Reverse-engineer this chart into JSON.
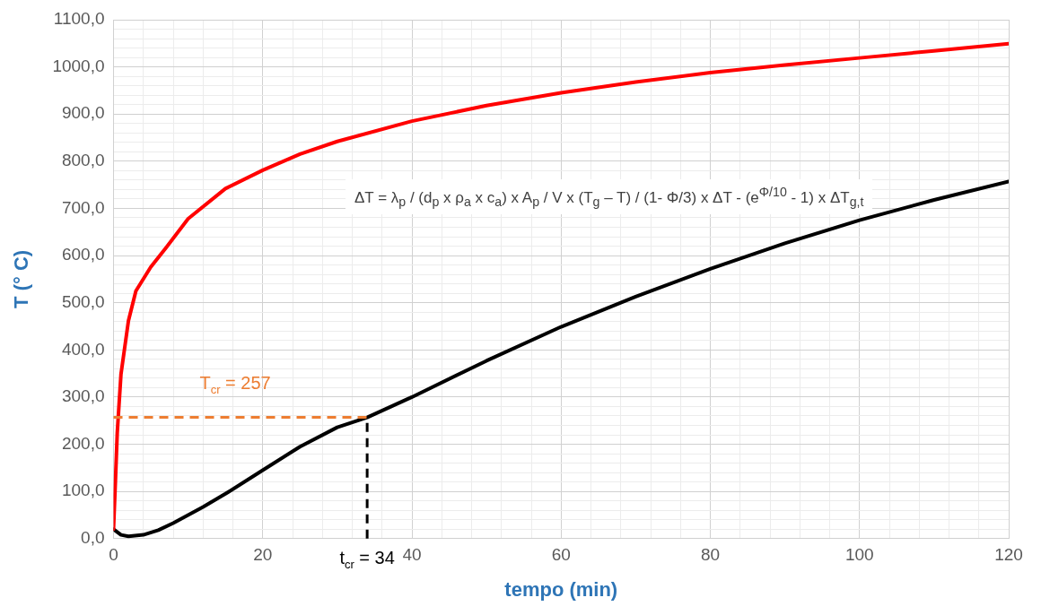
{
  "chart_data": {
    "type": "line",
    "xlabel": "tempo (min)",
    "ylabel": "T (° C)",
    "xlim": [
      0,
      120
    ],
    "xticks": [
      0,
      {
        "value": 4,
        "label": null
      },
      {
        "value": 8,
        "label": null
      },
      {
        "value": 12,
        "label": null
      },
      {
        "value": 16,
        "label": null
      },
      20,
      {
        "value": 24,
        "label": null
      },
      {
        "value": 28,
        "label": null
      },
      {
        "value": 32,
        "label": null
      },
      {
        "value": 36,
        "label": null
      },
      40,
      {
        "value": 44,
        "label": null
      },
      {
        "value": 48,
        "label": null
      },
      {
        "value": 52,
        "label": null
      },
      {
        "value": 56,
        "label": null
      },
      60,
      {
        "value": 64,
        "label": null
      },
      {
        "value": 68,
        "label": null
      },
      {
        "value": 72,
        "label": null
      },
      {
        "value": 76,
        "label": null
      },
      80,
      {
        "value": 84,
        "label": null
      },
      {
        "value": 88,
        "label": null
      },
      {
        "value": 92,
        "label": null
      },
      {
        "value": 96,
        "label": null
      },
      100,
      {
        "value": 104,
        "label": null
      },
      {
        "value": 108,
        "label": null
      },
      {
        "value": 112,
        "label": null
      },
      {
        "value": 116,
        "label": null
      },
      120
    ],
    "ylim": [
      0,
      1100
    ],
    "yticks": [
      {
        "value": 0,
        "label": "0,0"
      },
      {
        "value": 20,
        "label": null
      },
      {
        "value": 40,
        "label": null
      },
      {
        "value": 60,
        "label": null
      },
      {
        "value": 80,
        "label": null
      },
      {
        "value": 100,
        "label": "100,0"
      },
      {
        "value": 120,
        "label": null
      },
      {
        "value": 140,
        "label": null
      },
      {
        "value": 160,
        "label": null
      },
      {
        "value": 180,
        "label": null
      },
      {
        "value": 200,
        "label": "200,0"
      },
      {
        "value": 220,
        "label": null
      },
      {
        "value": 240,
        "label": null
      },
      {
        "value": 260,
        "label": null
      },
      {
        "value": 280,
        "label": null
      },
      {
        "value": 300,
        "label": "300,0"
      },
      {
        "value": 320,
        "label": null
      },
      {
        "value": 340,
        "label": null
      },
      {
        "value": 360,
        "label": null
      },
      {
        "value": 380,
        "label": null
      },
      {
        "value": 400,
        "label": "400,0"
      },
      {
        "value": 420,
        "label": null
      },
      {
        "value": 440,
        "label": null
      },
      {
        "value": 460,
        "label": null
      },
      {
        "value": 480,
        "label": null
      },
      {
        "value": 500,
        "label": "500,0"
      },
      {
        "value": 520,
        "label": null
      },
      {
        "value": 540,
        "label": null
      },
      {
        "value": 560,
        "label": null
      },
      {
        "value": 580,
        "label": null
      },
      {
        "value": 600,
        "label": "600,0"
      },
      {
        "value": 620,
        "label": null
      },
      {
        "value": 640,
        "label": null
      },
      {
        "value": 660,
        "label": null
      },
      {
        "value": 680,
        "label": null
      },
      {
        "value": 700,
        "label": "700,0"
      },
      {
        "value": 720,
        "label": null
      },
      {
        "value": 740,
        "label": null
      },
      {
        "value": 760,
        "label": null
      },
      {
        "value": 780,
        "label": null
      },
      {
        "value": 800,
        "label": "800,0"
      },
      {
        "value": 820,
        "label": null
      },
      {
        "value": 840,
        "label": null
      },
      {
        "value": 860,
        "label": null
      },
      {
        "value": 880,
        "label": null
      },
      {
        "value": 900,
        "label": "900,0"
      },
      {
        "value": 920,
        "label": null
      },
      {
        "value": 940,
        "label": null
      },
      {
        "value": 960,
        "label": null
      },
      {
        "value": 980,
        "label": null
      },
      {
        "value": 1000,
        "label": "1000,0"
      },
      {
        "value": 1020,
        "label": null
      },
      {
        "value": 1040,
        "label": null
      },
      {
        "value": 1060,
        "label": null
      },
      {
        "value": 1080,
        "label": null
      },
      {
        "value": 1100,
        "label": "1100,0"
      }
    ],
    "grid": true,
    "marker": "none",
    "line_style": "solid",
    "series": [
      {
        "color": "#ff0000",
        "x": [
          0,
          0.25,
          0.5,
          1,
          2,
          3,
          5,
          7,
          10,
          15,
          20,
          25,
          30,
          40,
          50,
          60,
          70,
          80,
          90,
          100,
          110,
          120
        ],
        "values": [
          20,
          120,
          225,
          349,
          462,
          525,
          576,
          616,
          678,
          742,
          781,
          815,
          842,
          885,
          918,
          945,
          968,
          988,
          1004,
          1019,
          1034,
          1049
        ]
      },
      {
        "color": "#000000",
        "x": [
          0,
          1,
          2,
          4,
          6,
          8,
          10,
          12,
          15,
          20,
          25,
          30,
          34,
          40,
          50,
          60,
          70,
          80,
          90,
          100,
          110,
          120
        ],
        "values": [
          20,
          8,
          5,
          8,
          18,
          33,
          50,
          67,
          95,
          145,
          195,
          236,
          257,
          300,
          377,
          449,
          513,
          572,
          626,
          675,
          718,
          757
        ]
      }
    ],
    "ref_lines": [
      {
        "axis": "y",
        "value": 257,
        "label": "T$_{cr}$ = 257",
        "color": "#ed7d31",
        "line_style": "dashed"
      },
      {
        "axis": "x",
        "value": 34,
        "label": "t$_{cr}$ = 34",
        "color": "#000000",
        "line_style": "dashed"
      }
    ],
    "annotations": [
      "ΔT = λ$_{p}$ / (d$_{p}$ x ρ$_{a}$ x c$_{a}$) x A$_{p}$ / V x (T$_{g}$ – T) / (1- Φ/3) x ΔT - (e$^{Φ/10}$ - 1) x ΔT$_{g,t}$"
    ]
  }
}
